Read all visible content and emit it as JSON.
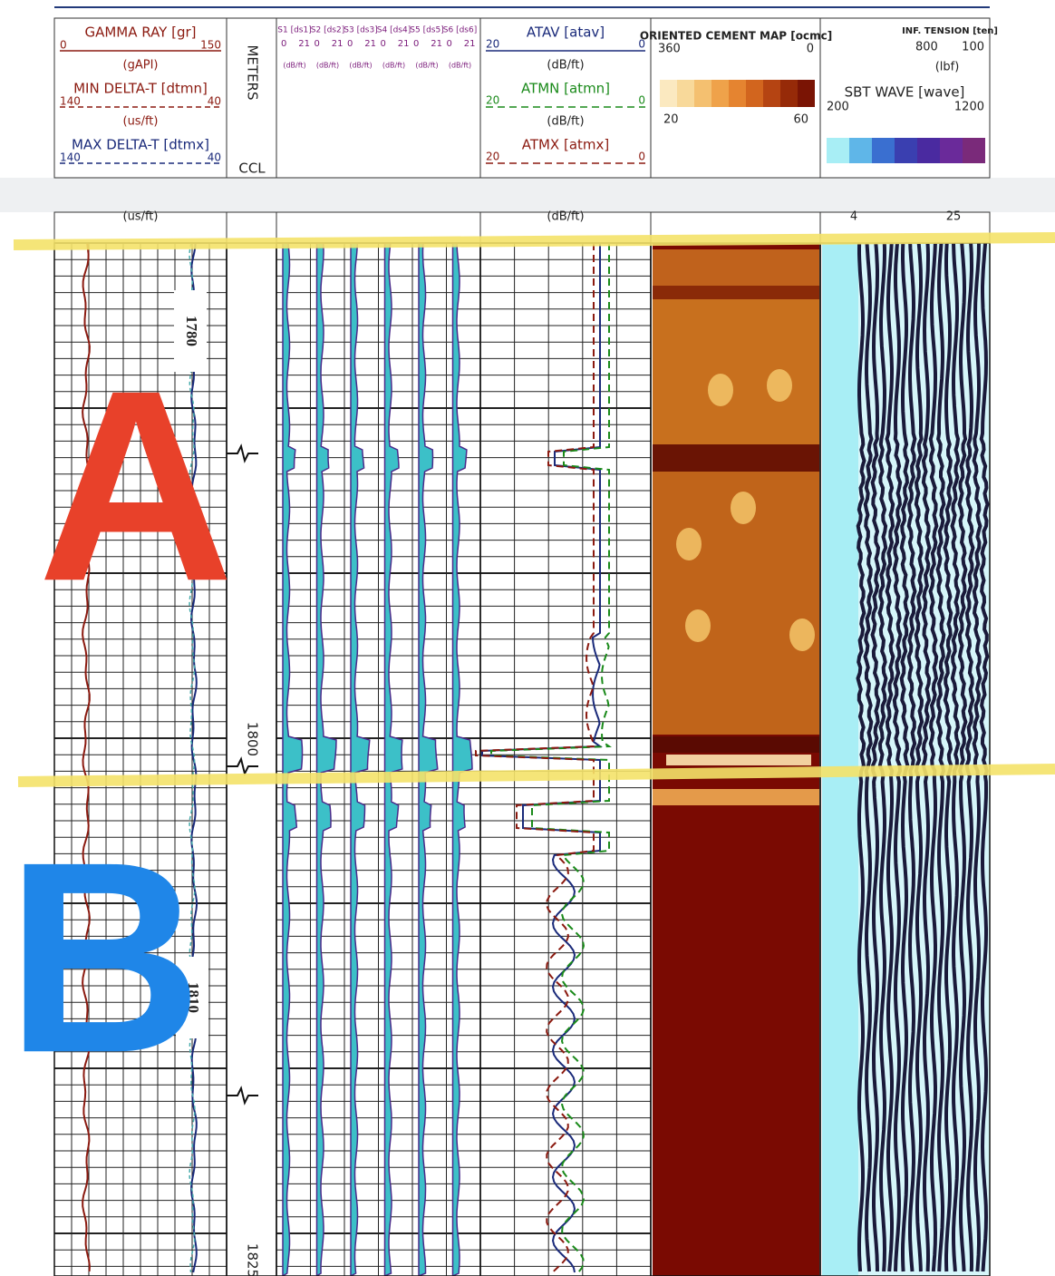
{
  "track_1": {
    "curves": [
      {
        "name": "GAMMA RAY [gr]",
        "left": 0,
        "right": 150,
        "unit": "(gAPI)"
      },
      {
        "name": "MIN DELTA-T [dtmn]",
        "left": 140,
        "right": 40,
        "unit": "(us/ft)"
      },
      {
        "name": "MAX DELTA-T [dtmx]",
        "left": 140,
        "right": 40,
        "unit": "(us/ft)"
      }
    ]
  },
  "depth_track": {
    "title": "METERS",
    "ccl": "CCL",
    "depths": [
      1780,
      1800,
      1810,
      1825
    ]
  },
  "track_3": {
    "curves": [
      {
        "name": "S1 [ds1]",
        "left": 0,
        "right": 21,
        "unit": "(dB/ft)"
      },
      {
        "name": "S2 [ds2]",
        "left": 0,
        "right": 21,
        "unit": "(dB/ft)"
      },
      {
        "name": "S3 [ds3]",
        "left": 0,
        "right": 21,
        "unit": "(dB/ft)"
      },
      {
        "name": "S4 [ds4]",
        "left": 0,
        "right": 21,
        "unit": "(dB/ft)"
      },
      {
        "name": "S5 [ds5]",
        "left": 0,
        "right": 21,
        "unit": "(dB/ft)"
      },
      {
        "name": "S6 [ds6]",
        "left": 0,
        "right": 21,
        "unit": "(dB/ft)"
      }
    ]
  },
  "track_4": {
    "curves": [
      {
        "name": "ATAV [atav]",
        "left": 20,
        "right": 0,
        "unit": "(dB/ft)"
      },
      {
        "name": "ATMN [atmn]",
        "left": 20,
        "right": 0,
        "unit": "(dB/ft)"
      },
      {
        "name": "ATMX [atmx]",
        "left": 20,
        "right": 0,
        "unit": "(dB/ft)"
      }
    ]
  },
  "track_5": {
    "title": "ORIENTED CEMENT MAP [ocmc]",
    "left": 360,
    "right": 0,
    "scale_min": 20,
    "scale_max": 60
  },
  "track_6": {
    "curves": [
      {
        "name": "INF. TENSION [ten]",
        "left": 800,
        "right": 100,
        "unit": "(lbf)"
      },
      {
        "name": "SBT WAVE [wave]",
        "left": 200,
        "right": 1200
      }
    ],
    "scale_min": 4,
    "scale_max": 25
  },
  "markers": {
    "a": "A",
    "b": "B"
  }
}
